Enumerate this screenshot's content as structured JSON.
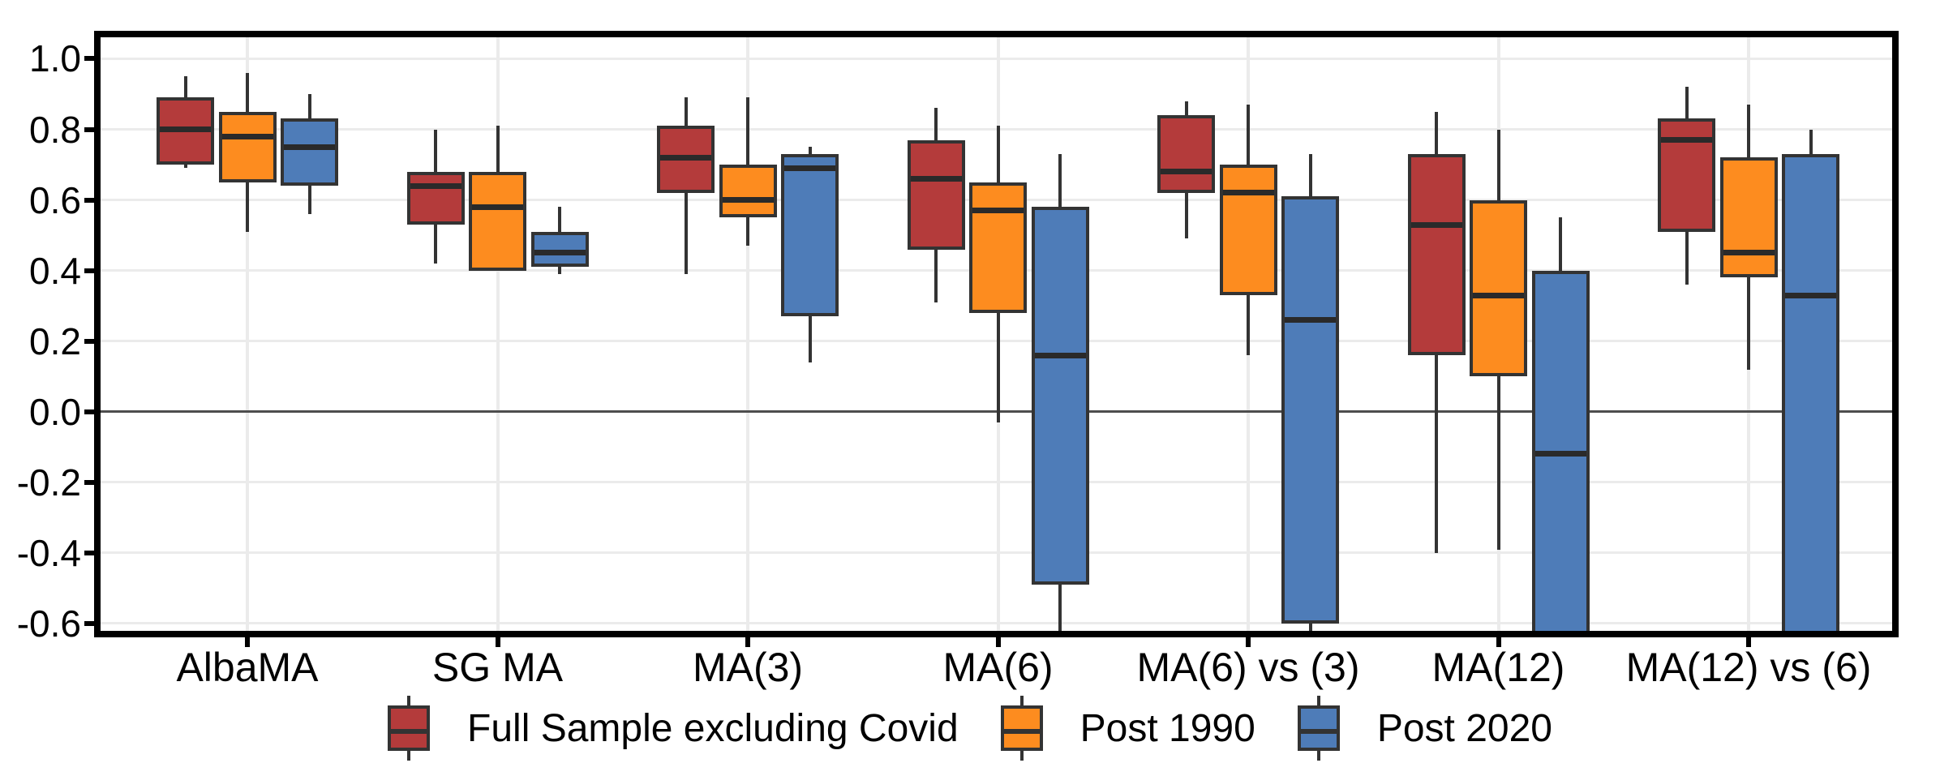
{
  "chart_data": {
    "type": "boxplot",
    "title": "",
    "xlabel": "",
    "ylabel": "",
    "categories": [
      "AlbaMA",
      "SG MA",
      "MA(3)",
      "MA(6)",
      "MA(6) vs (3)",
      "MA(12)",
      "MA(12) vs (6)"
    ],
    "y_tick_labels": [
      "1.0",
      "0.8",
      "0.6",
      "0.4",
      "0.2",
      "0.0",
      "-0.2",
      "-0.4",
      "-0.6"
    ],
    "y_tick_values": [
      1.0,
      0.8,
      0.6,
      0.4,
      0.2,
      0.0,
      -0.2,
      -0.4,
      -0.6
    ],
    "ylim": [
      -0.63,
      1.07
    ],
    "zero_line": 0.0,
    "grid": "major-only",
    "legend_position": "bottom-center",
    "colors": {
      "box_stroke": "#333333",
      "median": "#2a2a2a",
      "grid": "#ebebeb",
      "zero_line": "#4d4d4d",
      "axis": "#000000",
      "text": "#000000"
    },
    "series": [
      {
        "name": "Full Sample excluding Covid",
        "color": "#b43b3b",
        "boxes": [
          {
            "lo": 0.69,
            "q1": 0.7,
            "med": 0.8,
            "q3": 0.89,
            "hi": 0.95
          },
          {
            "lo": 0.42,
            "q1": 0.53,
            "med": 0.64,
            "q3": 0.68,
            "hi": 0.8
          },
          {
            "lo": 0.39,
            "q1": 0.62,
            "med": 0.72,
            "q3": 0.81,
            "hi": 0.89
          },
          {
            "lo": 0.31,
            "q1": 0.46,
            "med": 0.66,
            "q3": 0.77,
            "hi": 0.86
          },
          {
            "lo": 0.49,
            "q1": 0.62,
            "med": 0.68,
            "q3": 0.84,
            "hi": 0.88
          },
          {
            "lo": -0.4,
            "q1": 0.16,
            "med": 0.53,
            "q3": 0.73,
            "hi": 0.85
          },
          {
            "lo": 0.36,
            "q1": 0.51,
            "med": 0.77,
            "q3": 0.83,
            "hi": 0.92
          }
        ]
      },
      {
        "name": "Post 1990",
        "color": "#fd8c1f",
        "boxes": [
          {
            "lo": 0.51,
            "q1": 0.65,
            "med": 0.78,
            "q3": 0.85,
            "hi": 0.96
          },
          {
            "lo": 0.4,
            "q1": 0.4,
            "med": 0.58,
            "q3": 0.68,
            "hi": 0.81
          },
          {
            "lo": 0.47,
            "q1": 0.55,
            "med": 0.6,
            "q3": 0.7,
            "hi": 0.89
          },
          {
            "lo": -0.03,
            "q1": 0.28,
            "med": 0.57,
            "q3": 0.65,
            "hi": 0.81
          },
          {
            "lo": 0.16,
            "q1": 0.33,
            "med": 0.62,
            "q3": 0.7,
            "hi": 0.87
          },
          {
            "lo": -0.39,
            "q1": 0.1,
            "med": 0.33,
            "q3": 0.6,
            "hi": 0.8
          },
          {
            "lo": 0.12,
            "q1": 0.38,
            "med": 0.45,
            "q3": 0.72,
            "hi": 0.87
          }
        ]
      },
      {
        "name": "Post 2020",
        "color": "#4e7cb8",
        "boxes": [
          {
            "lo": 0.56,
            "q1": 0.64,
            "med": 0.75,
            "q3": 0.83,
            "hi": 0.9
          },
          {
            "lo": 0.39,
            "q1": 0.41,
            "med": 0.45,
            "q3": 0.51,
            "hi": 0.58
          },
          {
            "lo": 0.14,
            "q1": 0.27,
            "med": 0.69,
            "q3": 0.73,
            "hi": 0.75
          },
          {
            "lo": -0.63,
            "q1": -0.49,
            "med": 0.16,
            "q3": 0.58,
            "hi": 0.73
          },
          {
            "lo": -0.63,
            "q1": -0.6,
            "med": 0.26,
            "q3": 0.61,
            "hi": 0.73
          },
          {
            "lo": -0.63,
            "q1": -0.63,
            "med": -0.12,
            "q3": 0.4,
            "hi": 0.55
          },
          {
            "lo": -0.63,
            "q1": -0.63,
            "med": 0.33,
            "q3": 0.73,
            "hi": 0.8
          }
        ]
      }
    ]
  }
}
